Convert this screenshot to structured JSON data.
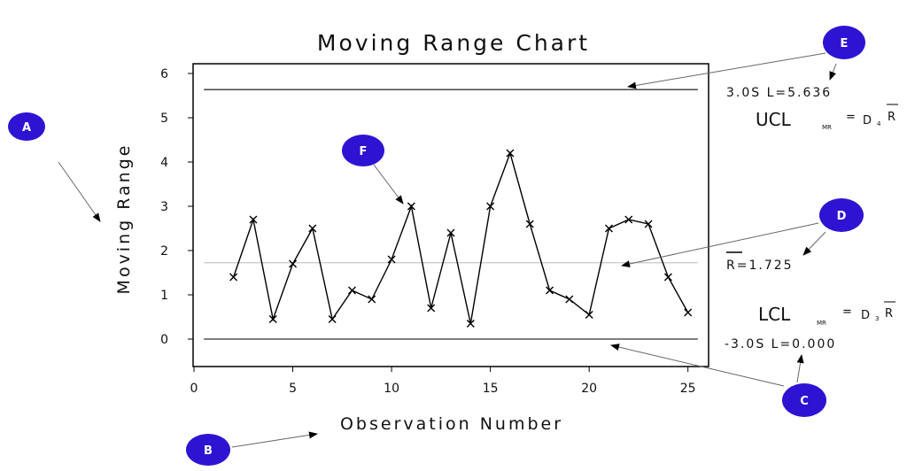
{
  "colors": {
    "callout_fill": "#2d14d2",
    "line": "#000000",
    "center_line": "#c8c8c8",
    "limit_line": "#333333"
  },
  "chart_data": {
    "type": "line",
    "title": "Moving Range Chart",
    "xlabel": "Observation Number",
    "ylabel": "Moving Range",
    "xlim": [
      0,
      26
    ],
    "ylim": [
      -0.6,
      6.2
    ],
    "xticks": [
      0,
      5,
      10,
      15,
      20,
      25
    ],
    "yticks": [
      0,
      1,
      2,
      3,
      4,
      5,
      6
    ],
    "grid": false,
    "marker": "x",
    "series": [
      {
        "x": [
          2,
          3,
          4,
          5,
          6,
          7,
          8,
          9,
          10,
          11,
          12,
          13,
          14,
          15,
          16,
          17,
          18,
          19,
          20,
          21,
          22,
          23,
          24,
          25
        ],
        "values": [
          1.4,
          2.7,
          0.45,
          1.7,
          2.5,
          0.45,
          1.1,
          0.9,
          1.8,
          3.0,
          0.7,
          2.4,
          0.35,
          3.0,
          4.2,
          2.6,
          1.1,
          0.9,
          0.55,
          2.5,
          2.7,
          2.6,
          1.4,
          0.6
        ]
      }
    ],
    "reference_lines": [
      {
        "kind": "UCL",
        "value": 5.636,
        "label": "3.0S L=5.636"
      },
      {
        "kind": "center",
        "value": 1.725,
        "label": "R=1.725"
      },
      {
        "kind": "LCL",
        "value": 0.0,
        "label": "-3.0S L=0.000"
      }
    ],
    "formulas": {
      "ucl": {
        "main": "UCL",
        "sub": "MR",
        "eq": "=",
        "coef": "D",
        "coef_sub": "4",
        "rbar": "R"
      },
      "lcl": {
        "main": "LCL",
        "sub": "MR",
        "eq": "=",
        "coef": "D",
        "coef_sub": "3",
        "rbar": "R"
      }
    },
    "callouts": [
      "A",
      "B",
      "C",
      "D",
      "E",
      "F"
    ]
  }
}
